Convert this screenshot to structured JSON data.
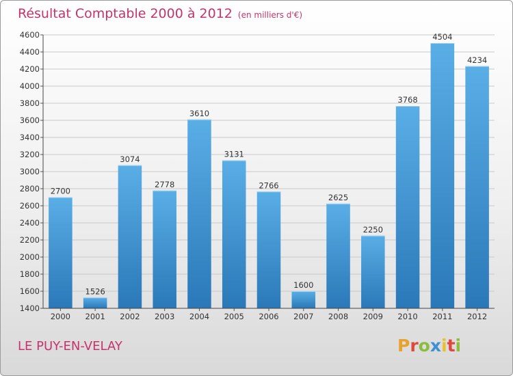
{
  "header": {
    "title": "Résultat Comptable 2000 à 2012",
    "subtitle": "(en milliers d'€)"
  },
  "footer": {
    "place": "LE PUY-EN-VELAY",
    "brand_letters": [
      "P",
      "r",
      "o",
      "x",
      "i",
      "t",
      "i"
    ],
    "brand_colors": [
      "#e8a12b",
      "#e0483e",
      "#8bbd3b",
      "#3d8fd6",
      "#e8c12b",
      "#e0483e",
      "#8bbd3b"
    ]
  },
  "colors": {
    "bar_top": "#5aaee6",
    "bar_bottom": "#2a78b8",
    "grid": "#c8c8c8",
    "title": "#c8326c"
  },
  "chart_data": {
    "type": "bar",
    "categories": [
      "2000",
      "2001",
      "2002",
      "2003",
      "2004",
      "2005",
      "2006",
      "2007",
      "2008",
      "2009",
      "2010",
      "2011",
      "2012"
    ],
    "values": [
      2700,
      1526,
      3074,
      2778,
      3610,
      3131,
      2766,
      1600,
      2625,
      2250,
      3768,
      4504,
      4234
    ],
    "ylim": [
      1400,
      4600
    ],
    "yticks": [
      1400,
      1600,
      1800,
      2000,
      2200,
      2400,
      2600,
      2800,
      3000,
      3200,
      3400,
      3600,
      3800,
      4000,
      4200,
      4400,
      4600
    ],
    "grid": true
  }
}
